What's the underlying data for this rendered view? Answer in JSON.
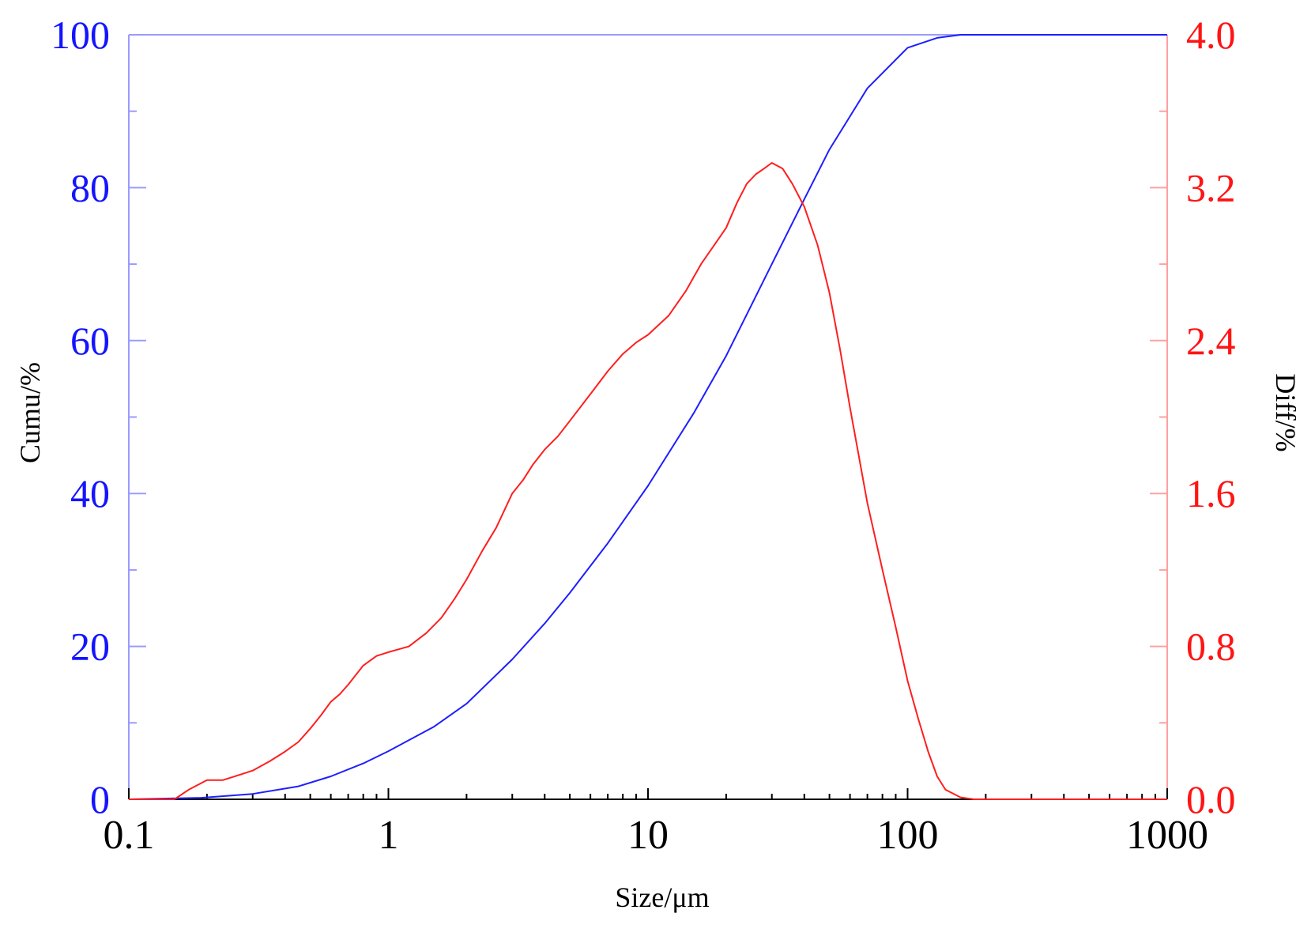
{
  "chart_data": {
    "type": "line",
    "xlabel": "Size/μm",
    "ylabel_left": "Cumu/%",
    "ylabel_right": "Diff/%",
    "x_scale": "log",
    "xlim": [
      0.1,
      1000
    ],
    "ylim_left": [
      0,
      100
    ],
    "ylim_right": [
      0,
      4.0
    ],
    "x_ticks": [
      "0.1",
      "1",
      "10",
      "100",
      "1000"
    ],
    "y_ticks_left": [
      "0",
      "20",
      "40",
      "60",
      "80",
      "100"
    ],
    "y_ticks_right": [
      "0.0",
      "0.8",
      "1.6",
      "2.4",
      "3.2",
      "4.0"
    ],
    "grid": false,
    "colors": {
      "cumu": "#1e1eff",
      "diff": "#ff1e1e",
      "left_axis": "#1414ff",
      "right_axis": "#ff1414"
    },
    "series": [
      {
        "axis": "left",
        "x": [
          0.1,
          0.19,
          0.3,
          0.45,
          0.6,
          0.8,
          1.0,
          1.5,
          2.0,
          3.0,
          4.0,
          5.0,
          7.0,
          10,
          15,
          20,
          30,
          40,
          50,
          70,
          100,
          130,
          160,
          200,
          500,
          1000
        ],
        "y": [
          0,
          0.2,
          0.7,
          1.7,
          3.0,
          4.7,
          6.3,
          9.5,
          12.5,
          18.3,
          23.0,
          27.0,
          33.5,
          41.0,
          50.5,
          58.0,
          70.0,
          78.5,
          85.0,
          93.0,
          98.3,
          99.6,
          100,
          100,
          100,
          100
        ]
      },
      {
        "axis": "right",
        "x": [
          0.1,
          0.15,
          0.17,
          0.2,
          0.23,
          0.27,
          0.3,
          0.35,
          0.4,
          0.45,
          0.5,
          0.55,
          0.6,
          0.65,
          0.7,
          0.8,
          0.9,
          1.0,
          1.2,
          1.4,
          1.6,
          1.8,
          2.0,
          2.3,
          2.6,
          3.0,
          3.3,
          3.6,
          4.0,
          4.5,
          5.0,
          6.0,
          7.0,
          8.0,
          9.0,
          10,
          12,
          14,
          16,
          18,
          20,
          22,
          24,
          26,
          28,
          30,
          33,
          36,
          40,
          45,
          50,
          55,
          60,
          70,
          80,
          90,
          100,
          110,
          120,
          130,
          140,
          160,
          180,
          200,
          300,
          500,
          1000
        ],
        "y": [
          0,
          0,
          0.05,
          0.1,
          0.1,
          0.13,
          0.15,
          0.2,
          0.25,
          0.3,
          0.37,
          0.44,
          0.51,
          0.55,
          0.6,
          0.7,
          0.75,
          0.77,
          0.8,
          0.87,
          0.95,
          1.05,
          1.15,
          1.3,
          1.42,
          1.6,
          1.67,
          1.75,
          1.83,
          1.9,
          1.98,
          2.12,
          2.24,
          2.33,
          2.39,
          2.43,
          2.53,
          2.66,
          2.8,
          2.9,
          2.99,
          3.12,
          3.22,
          3.27,
          3.3,
          3.33,
          3.3,
          3.22,
          3.1,
          2.9,
          2.65,
          2.35,
          2.05,
          1.55,
          1.2,
          0.9,
          0.62,
          0.42,
          0.25,
          0.12,
          0.05,
          0.01,
          0,
          0,
          0,
          0,
          0
        ]
      }
    ]
  }
}
